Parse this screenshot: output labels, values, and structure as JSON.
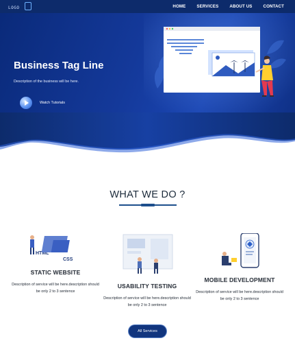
{
  "nav": {
    "logo_text": "LOGO",
    "items": [
      {
        "label": "HOME"
      },
      {
        "label": "SERVICES"
      },
      {
        "label": "ABOUT US"
      },
      {
        "label": "CONTACT"
      }
    ]
  },
  "hero": {
    "title": "Business Tag Line",
    "description": "Description of the business will be here.",
    "cta_label": "Watch Tutorials"
  },
  "section": {
    "title": "WHAT WE DO ?",
    "services": [
      {
        "title": "STATIC WEBSITE",
        "description": "Description of service will be here.description should be only 2 to 3 sentence",
        "icon": "html-css-icon"
      },
      {
        "title": "USABILITY TESTING",
        "description": "Description of service will be here.description should be only 2 to 3 sentence",
        "icon": "usability-testing-icon"
      },
      {
        "title": "MOBILE DEVELOPMENT",
        "description": "Description of service will be here.description should be only 2 to 3 sentence",
        "icon": "mobile-development-icon"
      }
    ],
    "all_services_label": "All Services",
    "art_labels": {
      "html": "HTML",
      "css": "CSS"
    }
  },
  "colors": {
    "nav_bg": "#0d2b6b",
    "hero_bg": "#14399a",
    "accent": "#1c4e8c",
    "button_bg": "#11357e"
  }
}
